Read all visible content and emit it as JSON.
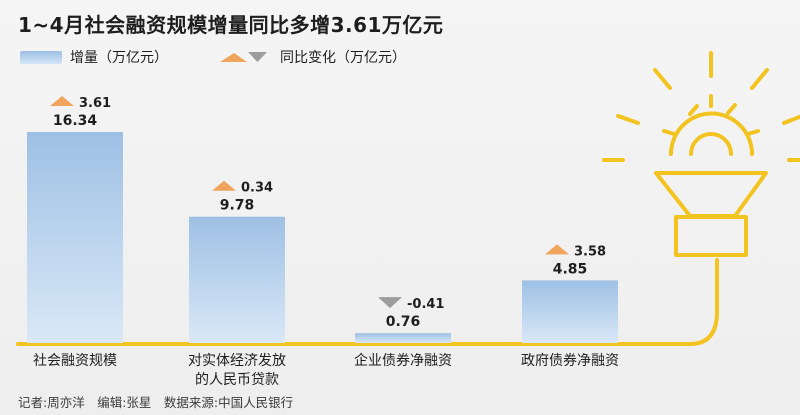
{
  "title": "1~4月社会融资规模增量同比多增3.61万亿元",
  "footer": "记者:周亦洋　编辑:张星　数据来源:中国人民银行",
  "legend": {
    "value_label": "增量（万亿元）",
    "change_label": "同比变化（万亿元）"
  },
  "colors": {
    "bar_top": "#9ec0e4",
    "bar_bottom": "#d9e8f7",
    "up_arrow": "#f0a45c",
    "down_arrow": "#9d9d9d",
    "bulb": "#f3c31f"
  },
  "chart_data": {
    "type": "bar",
    "title": "1~4月社会融资规模增量同比多增3.61万亿元",
    "categories": [
      [
        "社会融资规模"
      ],
      [
        "对实体经济发放",
        "的人民币贷款"
      ],
      [
        "企业债券净融资"
      ],
      [
        "政府债券净融资"
      ]
    ],
    "category_labels": [
      "社会融资规模",
      "对实体经济发放的人民币贷款",
      "企业债券净融资",
      "政府债券净融资"
    ],
    "series": [
      {
        "name": "增量（万亿元）",
        "values": [
          16.34,
          9.78,
          0.76,
          4.85
        ],
        "value_labels": [
          "16.34",
          "9.78",
          "0.76",
          "4.85"
        ]
      },
      {
        "name": "同比变化（万亿元）",
        "values": [
          3.61,
          0.34,
          -0.41,
          3.58
        ],
        "value_labels": [
          "3.61",
          "0.34",
          "-0.41",
          "3.58"
        ]
      }
    ],
    "ylim": [
      0,
      16.34
    ],
    "grid": false,
    "legend_position": "top-left",
    "xlabel": "",
    "ylabel": ""
  }
}
